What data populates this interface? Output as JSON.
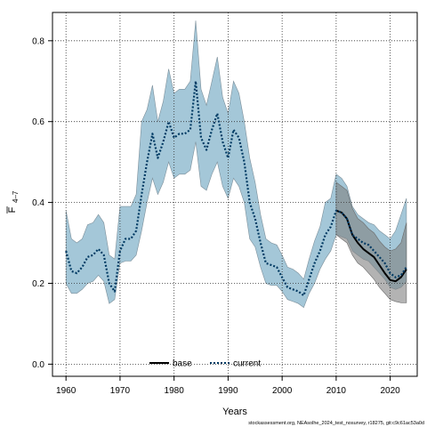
{
  "chart_data": {
    "type": "line",
    "title": "",
    "xlabel": "Years",
    "ylabel_main": "F",
    "ylabel_sub": "4–7",
    "xlim": [
      1957.5,
      2025
    ],
    "ylim": [
      -0.03,
      0.87
    ],
    "x_ticks": [
      1960,
      1970,
      1980,
      1990,
      2000,
      2010,
      2020
    ],
    "y_ticks": [
      0.0,
      0.2,
      0.4,
      0.6,
      0.8
    ],
    "y_tick_labels": [
      "0.0",
      "0.2",
      "0.4",
      "0.6",
      "0.8"
    ],
    "grid": true,
    "legend_position": "bottom-center",
    "footer": "stockassessment.org, NEAsolhe_2024_test_nosurvey, r18275, git:c9c61ac53a0d",
    "series": [
      {
        "name": "base",
        "style": "solid",
        "color": "#000000",
        "band_color": "#808080",
        "x": [
          2010,
          2011,
          2012,
          2013,
          2014,
          2015,
          2016,
          2017,
          2018,
          2019,
          2020,
          2021,
          2022,
          2023
        ],
        "values": [
          0.38,
          0.375,
          0.36,
          0.32,
          0.3,
          0.285,
          0.275,
          0.265,
          0.245,
          0.225,
          0.208,
          0.205,
          0.215,
          0.235
        ],
        "lower": [
          0.32,
          0.31,
          0.3,
          0.27,
          0.25,
          0.24,
          0.225,
          0.21,
          0.19,
          0.175,
          0.16,
          0.155,
          0.152,
          0.152
        ],
        "upper": [
          0.45,
          0.44,
          0.43,
          0.385,
          0.36,
          0.35,
          0.335,
          0.325,
          0.305,
          0.29,
          0.28,
          0.285,
          0.3,
          0.35
        ]
      },
      {
        "name": "current",
        "style": "dotted",
        "color": "#003a63",
        "band_color": "#9fc4d6",
        "x": [
          1960,
          1961,
          1962,
          1963,
          1964,
          1965,
          1966,
          1967,
          1968,
          1969,
          1970,
          1971,
          1972,
          1973,
          1974,
          1975,
          1976,
          1977,
          1978,
          1979,
          1980,
          1981,
          1982,
          1983,
          1984,
          1985,
          1986,
          1987,
          1988,
          1989,
          1990,
          1991,
          1992,
          1993,
          1994,
          1995,
          1996,
          1997,
          1998,
          1999,
          2000,
          2001,
          2002,
          2003,
          2004,
          2005,
          2006,
          2007,
          2008,
          2009,
          2010,
          2011,
          2012,
          2013,
          2014,
          2015,
          2016,
          2017,
          2018,
          2019,
          2020,
          2021,
          2022,
          2023
        ],
        "values": [
          0.28,
          0.23,
          0.225,
          0.24,
          0.265,
          0.27,
          0.285,
          0.27,
          0.2,
          0.18,
          0.28,
          0.31,
          0.31,
          0.33,
          0.42,
          0.5,
          0.57,
          0.51,
          0.55,
          0.6,
          0.56,
          0.57,
          0.57,
          0.58,
          0.7,
          0.56,
          0.53,
          0.58,
          0.62,
          0.55,
          0.51,
          0.58,
          0.56,
          0.5,
          0.4,
          0.36,
          0.3,
          0.25,
          0.245,
          0.24,
          0.215,
          0.19,
          0.185,
          0.18,
          0.17,
          0.21,
          0.25,
          0.28,
          0.32,
          0.34,
          0.38,
          0.375,
          0.36,
          0.32,
          0.31,
          0.3,
          0.295,
          0.28,
          0.265,
          0.25,
          0.225,
          0.215,
          0.22,
          0.24
        ],
        "lower": [
          0.2,
          0.175,
          0.175,
          0.185,
          0.2,
          0.205,
          0.22,
          0.205,
          0.15,
          0.16,
          0.25,
          0.255,
          0.255,
          0.27,
          0.33,
          0.4,
          0.46,
          0.42,
          0.45,
          0.5,
          0.46,
          0.47,
          0.47,
          0.48,
          0.55,
          0.44,
          0.43,
          0.47,
          0.5,
          0.44,
          0.41,
          0.46,
          0.44,
          0.4,
          0.31,
          0.29,
          0.24,
          0.2,
          0.195,
          0.195,
          0.18,
          0.16,
          0.155,
          0.15,
          0.14,
          0.175,
          0.2,
          0.235,
          0.26,
          0.28,
          0.32,
          0.315,
          0.31,
          0.28,
          0.27,
          0.26,
          0.255,
          0.24,
          0.225,
          0.21,
          0.19,
          0.185,
          0.19,
          0.205
        ],
        "upper": [
          0.38,
          0.31,
          0.3,
          0.31,
          0.345,
          0.35,
          0.37,
          0.35,
          0.27,
          0.26,
          0.39,
          0.39,
          0.39,
          0.42,
          0.6,
          0.63,
          0.69,
          0.6,
          0.65,
          0.73,
          0.67,
          0.68,
          0.68,
          0.7,
          0.85,
          0.68,
          0.64,
          0.7,
          0.76,
          0.66,
          0.62,
          0.7,
          0.67,
          0.6,
          0.51,
          0.45,
          0.37,
          0.31,
          0.3,
          0.295,
          0.27,
          0.24,
          0.235,
          0.225,
          0.21,
          0.26,
          0.305,
          0.34,
          0.4,
          0.41,
          0.47,
          0.46,
          0.44,
          0.39,
          0.37,
          0.36,
          0.35,
          0.345,
          0.33,
          0.32,
          0.31,
          0.33,
          0.37,
          0.41
        ]
      }
    ]
  }
}
